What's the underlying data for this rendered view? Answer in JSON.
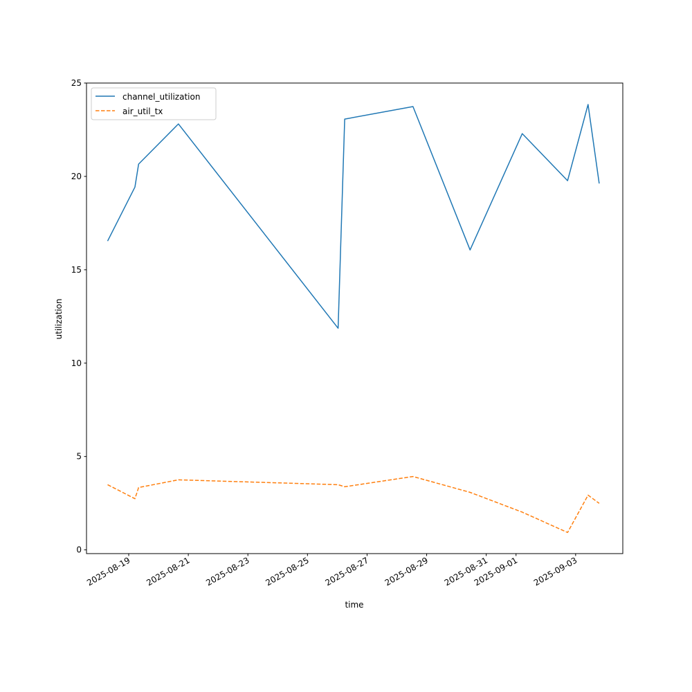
{
  "chart_data": {
    "type": "line",
    "title": "",
    "xlabel": "time",
    "ylabel": "utilization",
    "ylim": [
      -0.2,
      25
    ],
    "xlim": [
      "2025-08-17T14:00",
      "2025-09-04T14:00"
    ],
    "yticks": [
      "0",
      "5",
      "10",
      "15",
      "20",
      "25"
    ],
    "xticks": [
      "2025-08-19",
      "2025-08-21",
      "2025-08-23",
      "2025-08-25",
      "2025-08-27",
      "2025-08-29",
      "2025-08-31",
      "2025-09-01",
      "2025-09-03"
    ],
    "grid": false,
    "legend_position": "upper-left",
    "x": [
      "2025-08-18T07:00",
      "2025-08-19T05:00",
      "2025-08-19T08:00",
      "2025-08-20T16:00",
      "2025-08-26T00:40",
      "2025-08-26T06:00",
      "2025-08-28T13:00",
      "2025-08-30T11:00",
      "2025-09-01T05:00",
      "2025-09-02T17:30",
      "2025-09-03T10:00",
      "2025-09-03T19:00"
    ],
    "series": [
      {
        "name": "channel_utilization",
        "color": "#1f77b4",
        "style": "solid",
        "values": [
          16.54,
          19.43,
          20.66,
          22.81,
          11.87,
          23.07,
          23.74,
          16.06,
          22.29,
          19.77,
          23.85,
          19.62
        ]
      },
      {
        "name": "air_util_tx",
        "color": "#ff7f0e",
        "style": "dashed",
        "values": [
          3.49,
          2.74,
          3.34,
          3.75,
          3.49,
          3.38,
          3.93,
          3.08,
          2.02,
          0.93,
          2.93,
          2.49
        ]
      }
    ]
  }
}
